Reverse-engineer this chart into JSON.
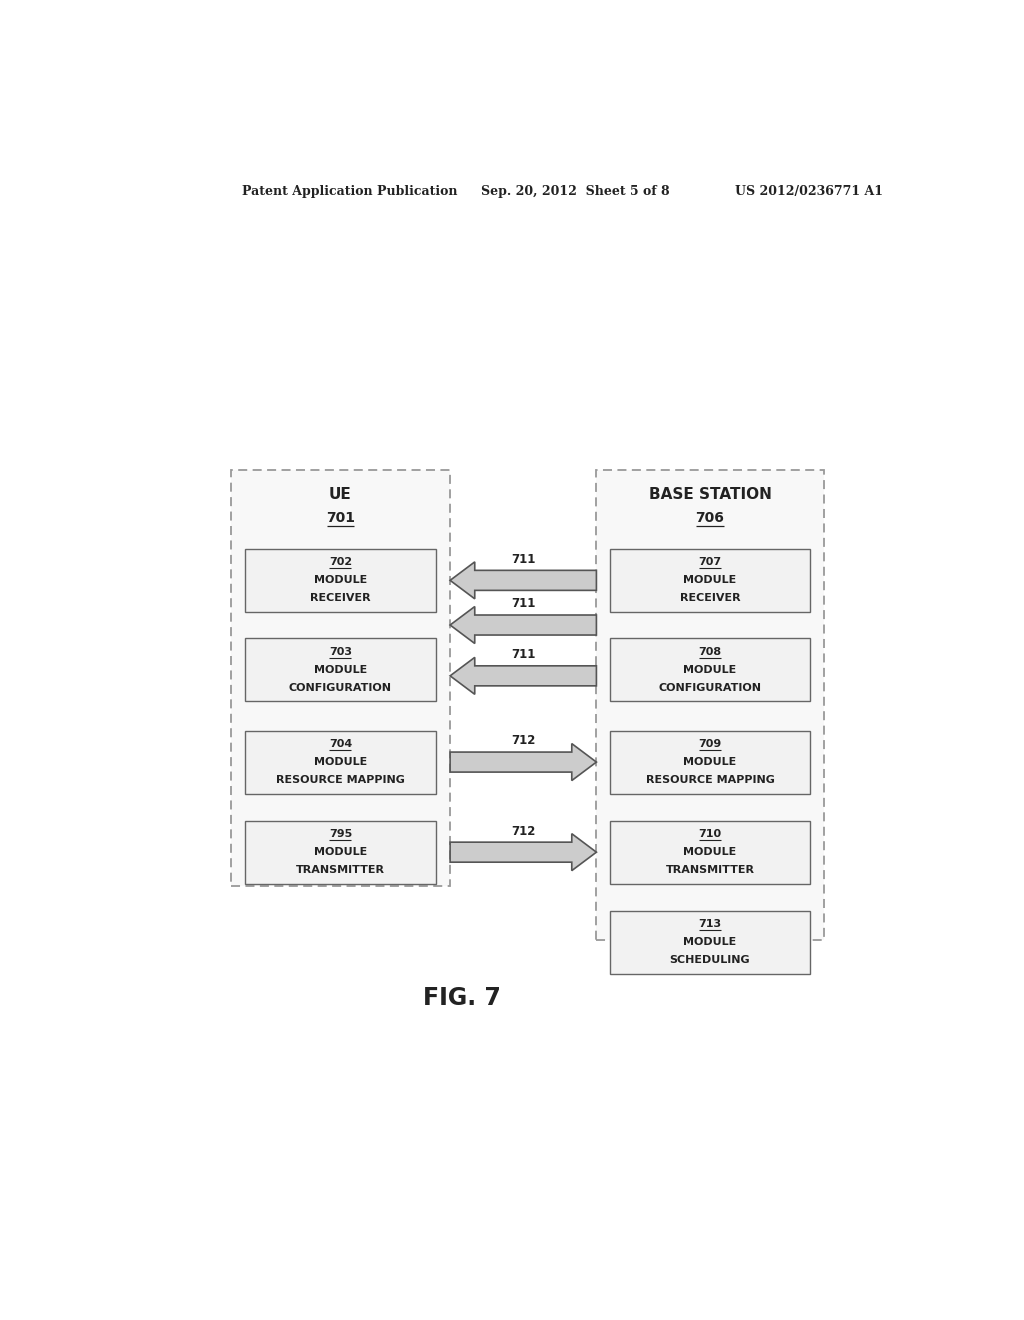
{
  "header_left": "Patent Application Publication",
  "header_mid": "Sep. 20, 2012  Sheet 5 of 8",
  "header_right": "US 2012/0236771 A1",
  "fig_label": "FIG. 7",
  "ue_title": "UE",
  "ue_num": "701",
  "bs_title": "BASE STATION",
  "bs_num": "706",
  "ue_modules": [
    {
      "lines": [
        "RECEIVER",
        "MODULE",
        "702"
      ]
    },
    {
      "lines": [
        "CONFIGURATION",
        "MODULE",
        "703"
      ]
    },
    {
      "lines": [
        "RESOURCE MAPPING",
        "MODULE",
        "704"
      ]
    },
    {
      "lines": [
        "TRANSMITTER",
        "MODULE",
        "795"
      ]
    }
  ],
  "bs_modules": [
    {
      "lines": [
        "RECEIVER",
        "MODULE",
        "707"
      ]
    },
    {
      "lines": [
        "CONFIGURATION",
        "MODULE",
        "708"
      ]
    },
    {
      "lines": [
        "RESOURCE MAPPING",
        "MODULE",
        "709"
      ]
    },
    {
      "lines": [
        "TRANSMITTER",
        "MODULE",
        "710"
      ]
    },
    {
      "lines": [
        "SCHEDULING",
        "MODULE",
        "713"
      ]
    }
  ],
  "bg_color": "#ffffff",
  "box_edge_color": "#666666",
  "outer_edge_color": "#999999",
  "inner_face_color": "#f2f2f2",
  "outer_face_color": "#f8f8f8",
  "text_color": "#222222",
  "arrow_face_color": "#cccccc",
  "arrow_edge_color": "#555555"
}
